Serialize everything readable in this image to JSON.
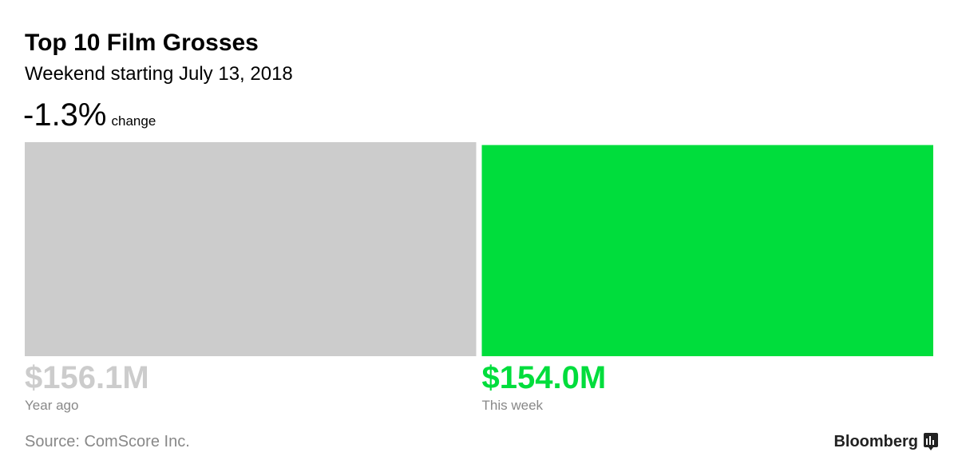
{
  "chart_data": {
    "type": "bar",
    "title": "Top 10 Film Grosses",
    "subtitle": "Weekend starting July 13, 2018",
    "change": {
      "value": -1.3,
      "label": "-1.3%"
    },
    "change_caption": "change",
    "categories": [
      "Year ago",
      "This week"
    ],
    "values": [
      156.1,
      154.0
    ],
    "value_labels": [
      "$156.1M",
      "$154.0M"
    ],
    "colors": [
      "#cccccc",
      "#00dd3c"
    ],
    "source": "Source: ComScore Inc.",
    "brand": "Bloomberg"
  }
}
